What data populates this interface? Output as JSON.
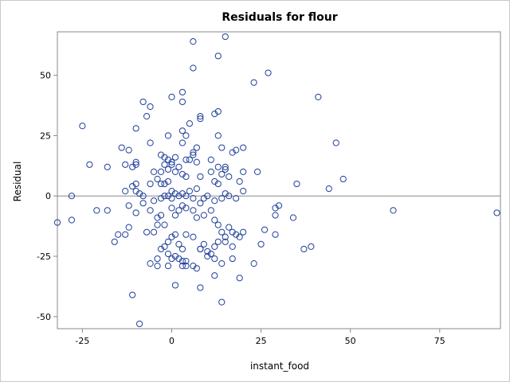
{
  "chart_data": {
    "type": "scatter",
    "title": "Residuals for flour",
    "xlabel": "instant_food",
    "ylabel": "Residual",
    "xlim": [
      -32,
      92
    ],
    "ylim": [
      -55,
      68
    ],
    "xticks": [
      -25,
      0,
      25,
      50,
      75
    ],
    "yticks": [
      -50,
      -25,
      0,
      25,
      50
    ],
    "reference_line_y": 0,
    "grid": false,
    "marker_color": "#1f3f99",
    "reference_line_color": "#888888",
    "points": [
      [
        6,
        64
      ],
      [
        15,
        66
      ],
      [
        6,
        53
      ],
      [
        13,
        58
      ],
      [
        27,
        51
      ],
      [
        23,
        47
      ],
      [
        41,
        41
      ],
      [
        -8,
        39
      ],
      [
        -6,
        37
      ],
      [
        -7,
        33
      ],
      [
        0,
        41
      ],
      [
        3,
        43
      ],
      [
        3,
        39
      ],
      [
        8,
        32
      ],
      [
        8,
        33
      ],
      [
        12,
        34
      ],
      [
        13,
        35
      ],
      [
        -25,
        29
      ],
      [
        -10,
        28
      ],
      [
        -1,
        25
      ],
      [
        4,
        25
      ],
      [
        5,
        30
      ],
      [
        3,
        27
      ],
      [
        13,
        25
      ],
      [
        6,
        18
      ],
      [
        7,
        20
      ],
      [
        14,
        20
      ],
      [
        -6,
        22
      ],
      [
        -14,
        20
      ],
      [
        -12,
        19
      ],
      [
        -3,
        17
      ],
      [
        -2,
        16
      ],
      [
        3,
        22
      ],
      [
        6,
        17
      ],
      [
        17,
        18
      ],
      [
        18,
        19
      ],
      [
        20,
        20
      ],
      [
        46,
        22
      ],
      [
        -23,
        13
      ],
      [
        -18,
        12
      ],
      [
        -11,
        12
      ],
      [
        -10,
        14
      ],
      [
        -10,
        13
      ],
      [
        -13,
        13
      ],
      [
        -1,
        15
      ],
      [
        0,
        14
      ],
      [
        4,
        15
      ],
      [
        5,
        15
      ],
      [
        1,
        16
      ],
      [
        2,
        12
      ],
      [
        7,
        14
      ],
      [
        11,
        15
      ],
      [
        13,
        12
      ],
      [
        15,
        12
      ],
      [
        15,
        11
      ],
      [
        16,
        8
      ],
      [
        20,
        10
      ],
      [
        24,
        10
      ],
      [
        -2,
        13
      ],
      [
        0,
        13
      ],
      [
        -3,
        10
      ],
      [
        -5,
        10
      ],
      [
        -4,
        7
      ],
      [
        -1,
        11
      ],
      [
        1,
        10
      ],
      [
        3,
        9
      ],
      [
        4,
        8
      ],
      [
        8,
        8
      ],
      [
        11,
        10
      ],
      [
        12,
        6
      ],
      [
        13,
        5
      ],
      [
        14,
        9
      ],
      [
        19,
        6
      ],
      [
        48,
        7
      ],
      [
        35,
        5
      ],
      [
        44,
        3
      ],
      [
        -13,
        2
      ],
      [
        -10,
        2
      ],
      [
        -9,
        1
      ],
      [
        -8,
        0
      ],
      [
        -11,
        4
      ],
      [
        -10,
        5
      ],
      [
        -6,
        5
      ],
      [
        -3,
        5
      ],
      [
        -2,
        5
      ],
      [
        -1,
        6
      ],
      [
        -3,
        -1
      ],
      [
        -2,
        0
      ],
      [
        -1,
        0
      ],
      [
        0,
        -1
      ],
      [
        0,
        2
      ],
      [
        1,
        1
      ],
      [
        2,
        0
      ],
      [
        3,
        1
      ],
      [
        4,
        0
      ],
      [
        5,
        2
      ],
      [
        6,
        -1
      ],
      [
        7,
        3
      ],
      [
        9,
        -1
      ],
      [
        10,
        0
      ],
      [
        12,
        -2
      ],
      [
        14,
        -1
      ],
      [
        15,
        1
      ],
      [
        16,
        0
      ],
      [
        18,
        -1
      ],
      [
        20,
        2
      ],
      [
        -28,
        0
      ],
      [
        -32,
        -11
      ],
      [
        -28,
        -10
      ],
      [
        -21,
        -6
      ],
      [
        -18,
        -6
      ],
      [
        -15,
        -16
      ],
      [
        -16,
        -19
      ],
      [
        -13,
        -16
      ],
      [
        -12,
        -13
      ],
      [
        -12,
        -4
      ],
      [
        -10,
        -7
      ],
      [
        -8,
        -3
      ],
      [
        -6,
        -6
      ],
      [
        -5,
        -2
      ],
      [
        -4,
        -9
      ],
      [
        -3,
        -8
      ],
      [
        -2,
        -12
      ],
      [
        0,
        -5
      ],
      [
        1,
        -8
      ],
      [
        2,
        -6
      ],
      [
        3,
        -4
      ],
      [
        4,
        -5
      ],
      [
        6,
        -6
      ],
      [
        7,
        -9
      ],
      [
        8,
        -3
      ],
      [
        9,
        -8
      ],
      [
        11,
        -6
      ],
      [
        12,
        -10
      ],
      [
        13,
        -12
      ],
      [
        14,
        -15
      ],
      [
        15,
        -17
      ],
      [
        16,
        -13
      ],
      [
        17,
        -15
      ],
      [
        18,
        -16
      ],
      [
        19,
        -17
      ],
      [
        20,
        -15
      ],
      [
        29,
        -8
      ],
      [
        29,
        -5
      ],
      [
        30,
        -4
      ],
      [
        29,
        -16
      ],
      [
        26,
        -14
      ],
      [
        25,
        -20
      ],
      [
        34,
        -9
      ],
      [
        37,
        -22
      ],
      [
        39,
        -21
      ],
      [
        62,
        -6
      ],
      [
        91,
        -7
      ],
      [
        -7,
        -15
      ],
      [
        -5,
        -15
      ],
      [
        -4,
        -12
      ],
      [
        -1,
        -19
      ],
      [
        0,
        -17
      ],
      [
        1,
        -16
      ],
      [
        2,
        -20
      ],
      [
        3,
        -22
      ],
      [
        4,
        -16
      ],
      [
        6,
        -17
      ],
      [
        8,
        -22
      ],
      [
        9,
        -20
      ],
      [
        10,
        -23
      ],
      [
        11,
        -24
      ],
      [
        12,
        -21
      ],
      [
        13,
        -19
      ],
      [
        -4,
        -26
      ],
      [
        -3,
        -22
      ],
      [
        -2,
        -21
      ],
      [
        -1,
        -24
      ],
      [
        0,
        -26
      ],
      [
        1,
        -25
      ],
      [
        2,
        -26
      ],
      [
        3,
        -27
      ],
      [
        4,
        -29
      ],
      [
        6,
        -29
      ],
      [
        8,
        -22
      ],
      [
        10,
        -25
      ],
      [
        12,
        -26
      ],
      [
        14,
        -28
      ],
      [
        15,
        -19
      ],
      [
        17,
        -21
      ],
      [
        17,
        -26
      ],
      [
        23,
        -28
      ],
      [
        -6,
        -28
      ],
      [
        -4,
        -29
      ],
      [
        -1,
        -29
      ],
      [
        1,
        -37
      ],
      [
        3,
        -29
      ],
      [
        4,
        -27
      ],
      [
        7,
        -30
      ],
      [
        8,
        -38
      ],
      [
        12,
        -33
      ],
      [
        14,
        -44
      ],
      [
        19,
        -34
      ],
      [
        -11,
        -41
      ],
      [
        -9,
        -53
      ]
    ]
  }
}
